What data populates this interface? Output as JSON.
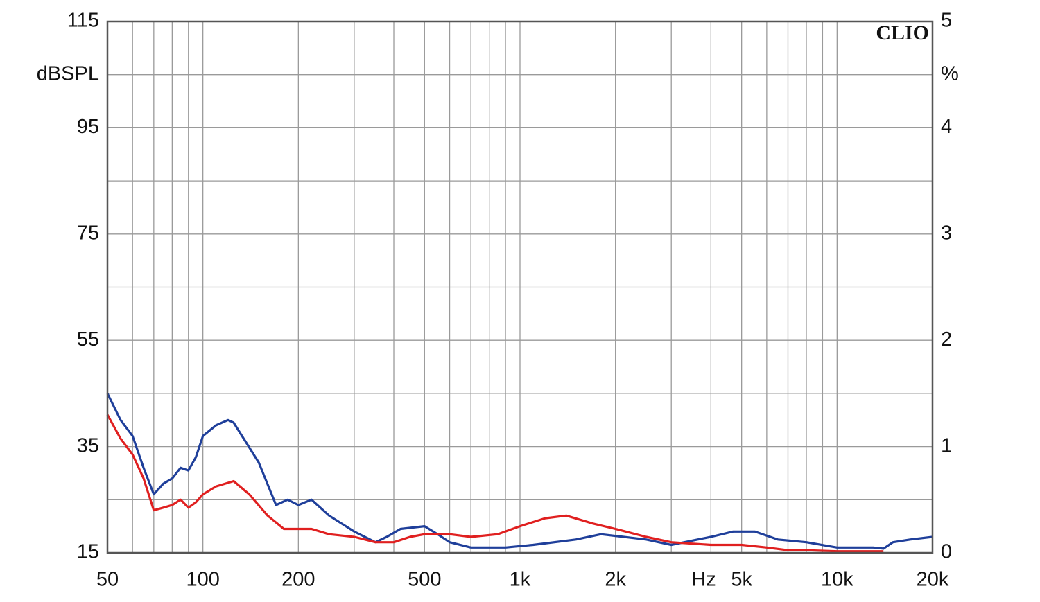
{
  "chart_data": {
    "type": "line",
    "brand": "CLIO",
    "ylabel": "dBSPL",
    "y2label": "%",
    "xlabel": "Hz",
    "xscale": "log",
    "grid": true,
    "xlim": [
      50,
      20000
    ],
    "xticks": [
      50,
      100,
      200,
      500,
      {
        "value": 1000,
        "label": "1k"
      },
      {
        "value": 2000,
        "label": "2k"
      },
      {
        "value": 5000,
        "label": "5k"
      },
      {
        "value": 10000,
        "label": "10k"
      },
      {
        "value": 20000,
        "label": "20k"
      }
    ],
    "xgrid": [
      60,
      70,
      80,
      90,
      300,
      400,
      600,
      700,
      800,
      900,
      3000,
      4000,
      6000,
      7000,
      8000,
      9000
    ],
    "ylim": [
      15,
      115
    ],
    "yticks": [
      15,
      35,
      55,
      75,
      95,
      115
    ],
    "ygrid": [
      25,
      45,
      65,
      85,
      105
    ],
    "y2lim": [
      0,
      5
    ],
    "y2ticks": [
      0,
      1,
      2,
      3,
      4,
      5
    ],
    "series": [
      {
        "color": "#1f3f9a",
        "x": [
          50,
          55,
          60,
          65,
          70,
          75,
          80,
          85,
          90,
          95,
          100,
          110,
          120,
          125,
          150,
          170,
          185,
          200,
          220,
          250,
          300,
          350,
          380,
          420,
          500,
          550,
          600,
          700,
          900,
          1100,
          1500,
          1800,
          2500,
          3000,
          4000,
          4700,
          5500,
          6500,
          8000,
          10000,
          13000,
          14000,
          15000,
          17000,
          20000
        ],
        "values": [
          45,
          40,
          37,
          31,
          26,
          28,
          29,
          31,
          30.5,
          33,
          37,
          39,
          40,
          39.5,
          32,
          24,
          25,
          24,
          25,
          22,
          19,
          17,
          18,
          19.5,
          20,
          18.5,
          17,
          16,
          16,
          16.5,
          17.5,
          18.5,
          17.5,
          16.5,
          18,
          19,
          19,
          17.5,
          17,
          16,
          16,
          15.8,
          17,
          17.5,
          18
        ]
      },
      {
        "color": "#e02020",
        "x": [
          50,
          55,
          60,
          65,
          70,
          75,
          80,
          85,
          90,
          95,
          100,
          110,
          125,
          140,
          160,
          180,
          200,
          220,
          250,
          300,
          350,
          400,
          450,
          500,
          600,
          700,
          850,
          1000,
          1200,
          1400,
          1700,
          2000,
          2500,
          3000,
          4000,
          5000,
          6000,
          7000,
          8000,
          10000,
          14000
        ],
        "values": [
          41,
          36.5,
          33.5,
          29,
          23,
          23.5,
          24,
          25,
          23.5,
          24.5,
          26,
          27.5,
          28.5,
          26,
          22,
          19.5,
          19.5,
          19.5,
          18.5,
          18,
          17,
          17,
          18,
          18.5,
          18.5,
          18,
          18.5,
          20,
          21.5,
          22,
          20.5,
          19.5,
          18,
          17,
          16.5,
          16.5,
          16,
          15.5,
          15.5,
          15.3,
          15.3
        ]
      }
    ]
  }
}
